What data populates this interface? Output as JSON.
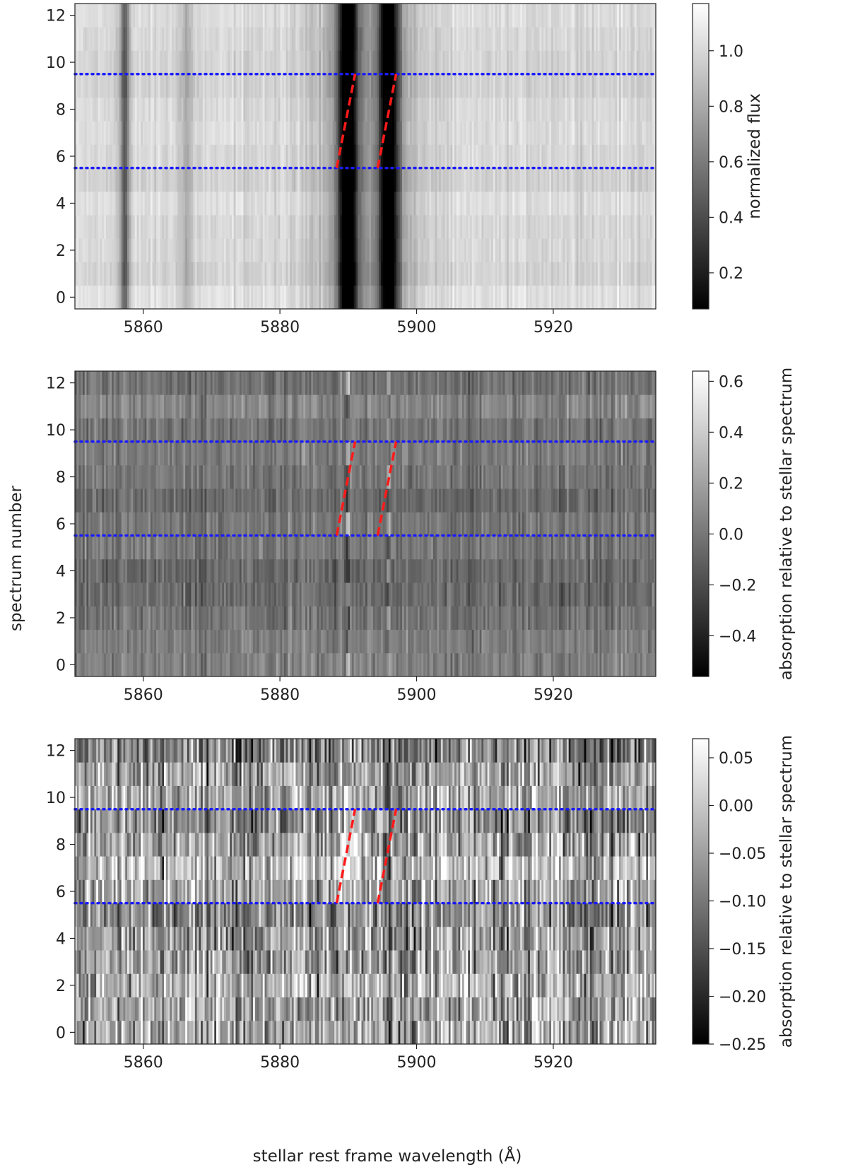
{
  "figure": {
    "ylabel": "spectrum number",
    "xlabel": "stellar rest frame wavelength (Å)"
  },
  "chart_data": [
    {
      "type": "heatmap",
      "xlim": [
        5850,
        5935
      ],
      "ylim": [
        -0.5,
        12.5
      ],
      "xticks": [
        5860,
        5880,
        5900,
        5920
      ],
      "yticks": [
        0,
        2,
        4,
        6,
        8,
        10,
        12
      ],
      "colorbar": {
        "label": "normalized flux",
        "range": [
          0.07,
          1.17
        ],
        "ticks": [
          0.2,
          0.4,
          0.6,
          0.8,
          1.0
        ],
        "tick_labels": [
          "0.2",
          "0.4",
          "0.6",
          "0.8",
          "1.0"
        ],
        "colormap": "gray"
      },
      "spectra_rows": 13,
      "absorption_lines": [
        {
          "wavelength": 5857.3,
          "depth": 0.55,
          "width": 0.5
        },
        {
          "wavelength": 5866.4,
          "depth": 0.2,
          "width": 0.6
        },
        {
          "wavelength": 5889.95,
          "depth": 0.92,
          "width": 1.0
        },
        {
          "wavelength": 5895.92,
          "depth": 0.85,
          "width": 1.0
        }
      ],
      "hlines": [
        {
          "y": 5.5,
          "color": "#1a1aff",
          "style": "dotted"
        },
        {
          "y": 9.5,
          "color": "#1a1aff",
          "style": "dotted"
        }
      ],
      "diagonal_segments": [
        {
          "x": [
            5888.3,
            5891.0
          ],
          "y": [
            5.5,
            9.5
          ],
          "color": "#ff1a1a",
          "style": "dashed"
        },
        {
          "x": [
            5894.3,
            5897.0
          ],
          "y": [
            5.5,
            9.5
          ],
          "color": "#ff1a1a",
          "style": "dashed"
        }
      ]
    },
    {
      "type": "heatmap",
      "xlim": [
        5850,
        5935
      ],
      "ylim": [
        -0.5,
        12.5
      ],
      "xticks": [
        5860,
        5880,
        5900,
        5920
      ],
      "yticks": [
        0,
        2,
        4,
        6,
        8,
        10,
        12
      ],
      "colorbar": {
        "label": "absorption relative to stellar spectrum",
        "range": [
          -0.56,
          0.64
        ],
        "ticks": [
          -0.4,
          -0.2,
          0.0,
          0.2,
          0.4,
          0.6
        ],
        "tick_labels": [
          "−0.4",
          "−0.2",
          "0.0",
          "0.2",
          "0.4",
          "0.6"
        ],
        "colormap": "gray"
      },
      "spectra_rows": 13,
      "hlines": [
        {
          "y": 5.5,
          "color": "#1a1aff",
          "style": "dotted"
        },
        {
          "y": 9.5,
          "color": "#1a1aff",
          "style": "dotted"
        }
      ],
      "diagonal_segments": [
        {
          "x": [
            5888.3,
            5891.0
          ],
          "y": [
            5.5,
            9.5
          ],
          "color": "#ff1a1a",
          "style": "dashed"
        },
        {
          "x": [
            5894.3,
            5897.0
          ],
          "y": [
            5.5,
            9.5
          ],
          "color": "#ff1a1a",
          "style": "dashed"
        }
      ]
    },
    {
      "type": "heatmap",
      "xlim": [
        5850,
        5935
      ],
      "ylim": [
        -0.5,
        12.5
      ],
      "xticks": [
        5860,
        5880,
        5900,
        5920
      ],
      "yticks": [
        0,
        2,
        4,
        6,
        8,
        10,
        12
      ],
      "colorbar": {
        "label": "absorption relative to stellar spectrum",
        "range": [
          -0.25,
          0.07
        ],
        "ticks": [
          -0.25,
          -0.2,
          -0.15,
          -0.1,
          -0.05,
          0.0,
          0.05
        ],
        "tick_labels": [
          "−0.25",
          "−0.20",
          "−0.15",
          "−0.10",
          "−0.05",
          "0.00",
          "0.05"
        ],
        "colormap": "gray"
      },
      "spectra_rows": 13,
      "hlines": [
        {
          "y": 5.5,
          "color": "#1a1aff",
          "style": "dotted"
        },
        {
          "y": 9.5,
          "color": "#1a1aff",
          "style": "dotted"
        }
      ],
      "diagonal_segments": [
        {
          "x": [
            5888.3,
            5891.0
          ],
          "y": [
            5.5,
            9.5
          ],
          "color": "#ff1a1a",
          "style": "dashed"
        },
        {
          "x": [
            5894.3,
            5897.0
          ],
          "y": [
            5.5,
            9.5
          ],
          "color": "#ff1a1a",
          "style": "dashed"
        }
      ]
    }
  ]
}
